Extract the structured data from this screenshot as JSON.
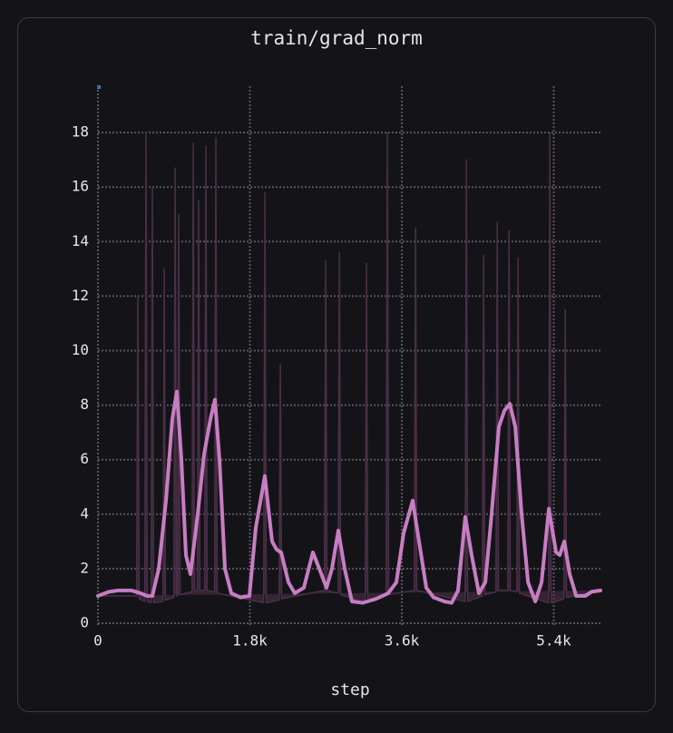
{
  "chart_data": {
    "type": "line",
    "title": "train/grad_norm",
    "x_label": "step",
    "xlim": [
      0,
      5953
    ],
    "ylim": [
      0,
      19.7
    ],
    "xticks": [
      0,
      {
        "value": 1800,
        "label": "1.8k"
      },
      {
        "value": 3600,
        "label": "3.6k"
      },
      {
        "value": 5400,
        "label": "5.4k"
      }
    ],
    "yticks": [
      0,
      2,
      4,
      6,
      8,
      10,
      12,
      14,
      16,
      18
    ],
    "grid": true,
    "series": [
      {
        "color": "#4a2f47",
        "x": [
          0,
          458,
          473,
          488,
          555,
          570,
          585,
          630,
          645,
          660,
          770,
          785,
          800,
          899,
          914,
          929,
          942,
          957,
          972,
          1114,
          1129,
          1144,
          1178,
          1193,
          1208,
          1264,
          1279,
          1294,
          1382,
          1397,
          1412,
          1963,
          1978,
          1993,
          2146,
          2161,
          2176,
          2683,
          2698,
          2713,
          2845,
          2860,
          2875,
          3167,
          3182,
          3197,
          3414,
          3429,
          3444,
          3748,
          3763,
          3778,
          4350,
          4365,
          4380,
          4554,
          4569,
          4584,
          4715,
          4730,
          4745,
          4855,
          4870,
          4885,
          4962,
          4977,
          4992,
          5338,
          5353,
          5368,
          5521,
          5536,
          5551,
          5953
        ],
        "values": [
          1.0,
          1.0,
          12,
          0.9,
          0.8,
          18,
          0.8,
          0.75,
          16,
          0.75,
          0.8,
          13,
          0.85,
          0.95,
          16.7,
          1.0,
          1.0,
          15,
          1.05,
          1.15,
          17.6,
          1.2,
          1.2,
          15.5,
          1.2,
          1.2,
          17.5,
          1.2,
          1.15,
          17.8,
          1.1,
          0.75,
          15.8,
          0.75,
          0.85,
          9.5,
          0.9,
          1.2,
          13.3,
          1.2,
          1.1,
          13.6,
          1.05,
          0.75,
          13.2,
          0.8,
          1.0,
          18,
          1.05,
          1.2,
          14.5,
          1.2,
          0.8,
          17,
          0.8,
          1.0,
          13.5,
          1.05,
          1.15,
          14.7,
          1.2,
          1.2,
          14.4,
          1.2,
          1.15,
          13.4,
          1.1,
          0.75,
          18,
          0.75,
          0.9,
          11.5,
          0.95,
          1.2
        ]
      },
      {
        "color": "#c77dc2",
        "x": [
          0,
          129,
          236,
          398,
          505,
          580,
          645,
          720,
          806,
          881,
          935,
          989,
          1042,
          1096,
          1182,
          1257,
          1333,
          1386,
          1440,
          1504,
          1580,
          1687,
          1795,
          1870,
          1977,
          2063,
          2117,
          2171,
          2257,
          2332,
          2439,
          2547,
          2622,
          2708,
          2772,
          2848,
          2923,
          3009,
          3138,
          3299,
          3439,
          3535,
          3621,
          3729,
          3804,
          3890,
          3976,
          4105,
          4191,
          4266,
          4352,
          4427,
          4513,
          4589,
          4664,
          4750,
          4815,
          4879,
          4944,
          5019,
          5095,
          5181,
          5256,
          5342,
          5428,
          5471,
          5525,
          5589,
          5665,
          5772,
          5846,
          5953
        ],
        "values": [
          1.0,
          1.15,
          1.2,
          1.2,
          1.1,
          1.0,
          1.0,
          2.0,
          4.5,
          7.5,
          8.5,
          6,
          2.5,
          1.8,
          4,
          6.2,
          7.5,
          8.2,
          6,
          2,
          1.1,
          0.95,
          1.0,
          3.5,
          5.4,
          3,
          2.7,
          2.6,
          1.5,
          1.1,
          1.3,
          2.6,
          2,
          1.3,
          2.0,
          3.4,
          2,
          0.8,
          0.75,
          0.9,
          1.1,
          1.5,
          3.3,
          4.5,
          3,
          1.3,
          0.95,
          0.8,
          0.75,
          1.2,
          3.9,
          2.5,
          1.1,
          1.5,
          4,
          7.2,
          7.8,
          8.05,
          7.2,
          4,
          1.5,
          0.8,
          1.5,
          4.2,
          2.6,
          2.5,
          3.0,
          1.8,
          1.0,
          1.0,
          1.15,
          1.2
        ]
      }
    ]
  }
}
